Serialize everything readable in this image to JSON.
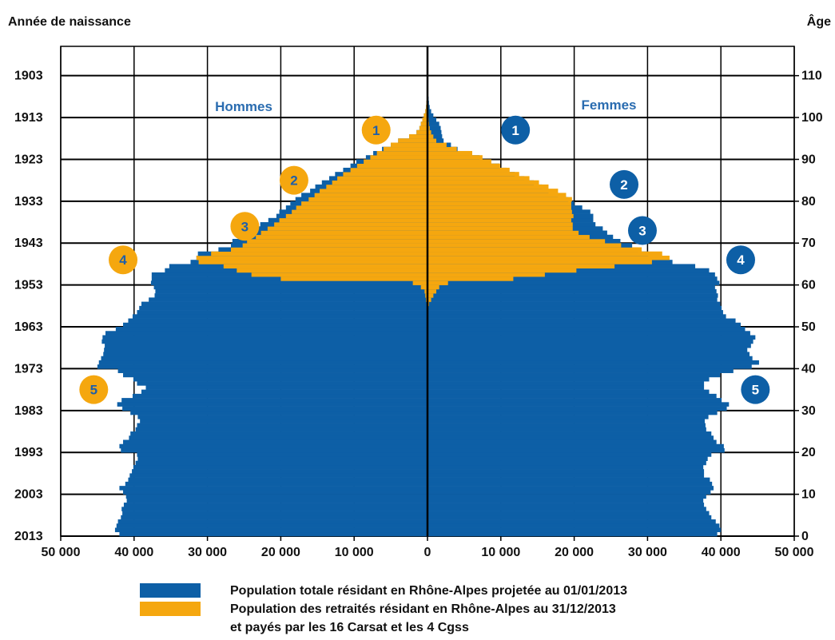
{
  "chart_data": {
    "type": "bar",
    "subtype": "population-pyramid",
    "left_axis_title": "Année de naissance",
    "right_axis_title": "Âge",
    "x_ticks": [
      "50 000",
      "40 000",
      "30 000",
      "20 000",
      "10 000",
      "0",
      "10 000",
      "20 000",
      "30 000",
      "40 000",
      "50 000"
    ],
    "xlim": [
      -50000,
      50000
    ],
    "ylim_age": [
      0,
      117
    ],
    "birth_year_ticks": [
      {
        "age": 110,
        "label": "1903"
      },
      {
        "age": 100,
        "label": "1913"
      },
      {
        "age": 90,
        "label": "1923"
      },
      {
        "age": 80,
        "label": "1933"
      },
      {
        "age": 70,
        "label": "1943"
      },
      {
        "age": 60,
        "label": "1953"
      },
      {
        "age": 50,
        "label": "1963"
      },
      {
        "age": 40,
        "label": "1973"
      },
      {
        "age": 30,
        "label": "1983"
      },
      {
        "age": 20,
        "label": "1993"
      },
      {
        "age": 10,
        "label": "2003"
      },
      {
        "age": 0,
        "label": "2013"
      }
    ],
    "age_ticks": [
      "0",
      "10",
      "20",
      "30",
      "40",
      "50",
      "60",
      "70",
      "80",
      "90",
      "100",
      "110"
    ],
    "grid": "horizontal lines every 10 years plus vertical lines every 10 000",
    "sex_labels": {
      "left": "Hommes",
      "right": "Femmes"
    },
    "series_colors": {
      "total": "#0D5FA6",
      "retired": "#F5A70F"
    },
    "age_profile_note_omitted": "",
    "men_total": [
      42000,
      42600,
      42400,
      42200,
      41800,
      41600,
      41700,
      41400,
      41000,
      41100,
      41500,
      42000,
      41200,
      40800,
      40600,
      40300,
      40100,
      39800,
      39500,
      39600,
      41800,
      42000,
      41500,
      40700,
      40500,
      39800,
      39600,
      39200,
      39500,
      40500,
      41600,
      42300,
      41700,
      40200,
      39000,
      38400,
      39600,
      40100,
      41500,
      42200,
      45000,
      44800,
      44500,
      44200,
      44100,
      44000,
      44400,
      44300,
      43900,
      42500,
      41500,
      40800,
      40200,
      39600,
      39300,
      39000,
      38000,
      37200,
      37100,
      37300,
      37700,
      37600,
      37600,
      35800,
      35200,
      32300,
      31500,
      31300,
      28500,
      26800,
      26600,
      24400,
      24200,
      23400,
      22800,
      21700,
      20600,
      20200,
      19300,
      18700,
      18000,
      17200,
      16000,
      15300,
      14400,
      13400,
      12600,
      11500,
      10500,
      9700,
      8400,
      7400,
      6200,
      5000,
      4000,
      2500,
      1500,
      1100,
      900,
      700,
      500,
      300,
      200,
      150,
      100,
      80,
      60,
      40,
      20,
      10
    ],
    "men_retired": [
      0,
      0,
      0,
      0,
      0,
      0,
      0,
      0,
      0,
      0,
      0,
      0,
      0,
      0,
      0,
      0,
      0,
      0,
      0,
      0,
      0,
      0,
      0,
      0,
      0,
      0,
      0,
      0,
      0,
      0,
      0,
      0,
      0,
      0,
      0,
      0,
      0,
      0,
      0,
      0,
      0,
      0,
      0,
      0,
      0,
      0,
      0,
      0,
      0,
      0,
      0,
      0,
      0,
      0,
      0,
      100,
      200,
      300,
      400,
      900,
      2000,
      20000,
      24000,
      26000,
      27800,
      31200,
      31500,
      29500,
      26800,
      25200,
      24600,
      23400,
      22700,
      21800,
      20900,
      20200,
      19300,
      18500,
      17900,
      17200,
      16200,
      15400,
      14700,
      13800,
      13000,
      12300,
      11500,
      10500,
      9600,
      8700,
      7800,
      6900,
      6000,
      5000,
      4000,
      2500,
      1500,
      1100,
      900,
      700,
      500,
      300,
      200,
      150,
      100,
      80,
      60,
      40,
      20,
      10
    ],
    "women_total": [
      39500,
      40000,
      39800,
      39300,
      38700,
      38400,
      38000,
      37700,
      37600,
      38000,
      38600,
      39000,
      38800,
      38500,
      37700,
      37700,
      37600,
      38000,
      38200,
      38700,
      40500,
      40400,
      39400,
      39000,
      38700,
      38000,
      37900,
      37800,
      38300,
      39500,
      40800,
      41100,
      40100,
      39400,
      38400,
      37700,
      37700,
      38400,
      39900,
      41700,
      44200,
      45200,
      44300,
      43900,
      43600,
      44100,
      44400,
      44700,
      44000,
      43300,
      42700,
      42000,
      40700,
      40300,
      40100,
      39900,
      39500,
      39600,
      39400,
      39200,
      39800,
      39500,
      39200,
      38400,
      36500,
      33400,
      31500,
      30100,
      28700,
      27900,
      26300,
      25300,
      24500,
      23900,
      22900,
      22600,
      22600,
      22200,
      21100,
      20000,
      19200,
      17800,
      16500,
      15600,
      14500,
      13200,
      11900,
      10800,
      9800,
      8500,
      7100,
      5700,
      4100,
      3200,
      2200,
      2000,
      1900,
      1800,
      1600,
      1200,
      800,
      500,
      300,
      200,
      150,
      100,
      60,
      30,
      15,
      5
    ],
    "women_retired": [
      0,
      0,
      0,
      0,
      0,
      0,
      0,
      0,
      0,
      0,
      0,
      0,
      0,
      0,
      0,
      0,
      0,
      0,
      0,
      0,
      0,
      0,
      0,
      0,
      0,
      0,
      0,
      0,
      0,
      0,
      0,
      0,
      0,
      0,
      0,
      0,
      0,
      0,
      0,
      0,
      0,
      0,
      0,
      0,
      0,
      0,
      0,
      0,
      0,
      0,
      0,
      0,
      0,
      0,
      0,
      200,
      500,
      800,
      1200,
      1600,
      2800,
      11700,
      16000,
      20300,
      25500,
      30600,
      33000,
      32000,
      29200,
      26400,
      24200,
      22100,
      20600,
      19800,
      19800,
      19600,
      19900,
      19700,
      19600,
      19600,
      19700,
      18900,
      17800,
      16500,
      15200,
      13900,
      12500,
      11200,
      9900,
      8700,
      7500,
      6100,
      4000,
      2600,
      1200,
      800,
      500,
      300,
      200,
      150,
      100,
      80,
      60,
      30,
      15,
      5
    ],
    "badges": [
      {
        "side": "men",
        "number": "1",
        "age": 97,
        "x": -7000
      },
      {
        "side": "men",
        "number": "2",
        "age": 85,
        "x": -18200
      },
      {
        "side": "men",
        "number": "3",
        "age": 74,
        "x": -24900
      },
      {
        "side": "men",
        "number": "4",
        "age": 66,
        "x": -41500
      },
      {
        "side": "men",
        "number": "5",
        "age": 35,
        "x": -45500
      },
      {
        "side": "women",
        "number": "1",
        "age": 97,
        "x": 12000
      },
      {
        "side": "women",
        "number": "2",
        "age": 84,
        "x": 26800
      },
      {
        "side": "women",
        "number": "3",
        "age": 73,
        "x": 29300
      },
      {
        "side": "women",
        "number": "4",
        "age": 66,
        "x": 42700
      },
      {
        "side": "women",
        "number": "5",
        "age": 35,
        "x": 44700
      }
    ]
  },
  "legend": {
    "items": [
      {
        "label": "Population totale résidant en Rhône-Alpes projetée au 01/01/2013",
        "color": "#0D5FA6"
      },
      {
        "label": "Population des retraités résidant en Rhône-Alpes au 31/12/2013",
        "color": "#F5A70F"
      }
    ],
    "continuation": "et payés par les 16 Carsat et les 4 Cgss"
  }
}
